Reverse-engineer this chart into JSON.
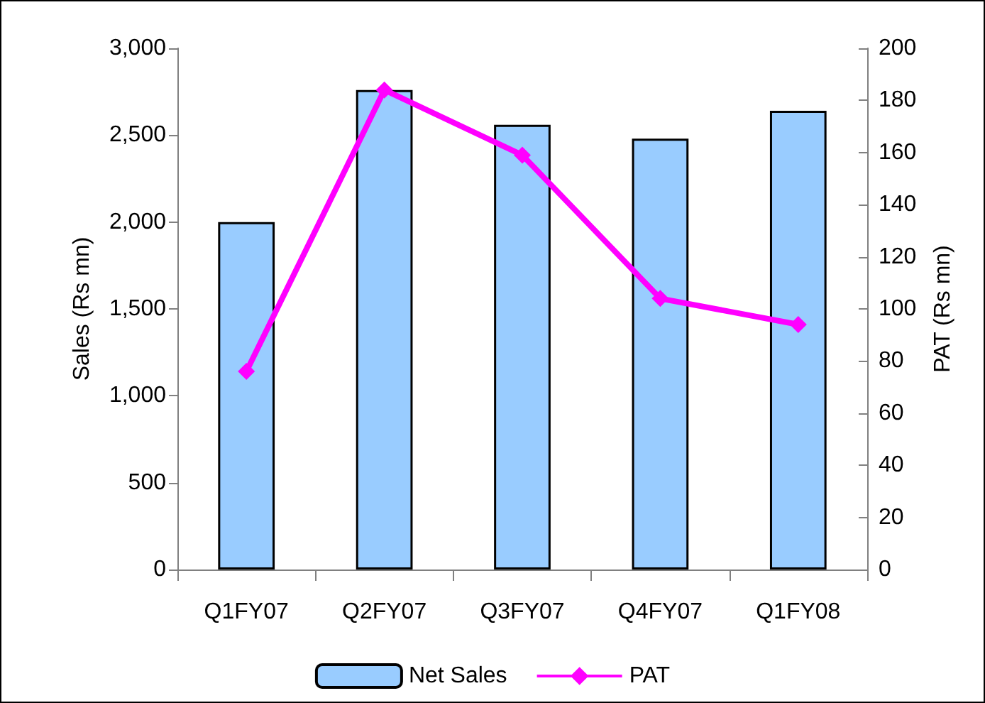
{
  "chart_data": {
    "type": "bar",
    "ylabel": "Sales (Rs mn)",
    "y2label": "PAT (Rs mn)",
    "categories": [
      "Q1FY07",
      "Q2FY07",
      "Q3FY07",
      "Q4FY07",
      "Q1FY08"
    ],
    "series": [
      {
        "name": "Net Sales",
        "color": "#99ccff",
        "values": [
          2000,
          2760,
          2560,
          2480,
          2640
        ]
      },
      {
        "name": "PAT",
        "type": "line",
        "axis": "y2",
        "color": "#ff00ff",
        "marker": "diamond",
        "values": [
          76,
          184,
          159,
          104,
          94
        ]
      }
    ],
    "ylim": [
      0,
      3000
    ],
    "yticks": [
      0,
      500,
      {
        "value": 1000,
        "label": "1,000"
      },
      {
        "value": 1500,
        "label": "1,500"
      },
      {
        "value": 2000,
        "label": "2,000"
      },
      {
        "value": 2500,
        "label": "2,500"
      },
      {
        "value": 3000,
        "label": "3,000"
      }
    ],
    "y2lim": [
      0,
      200
    ],
    "y2ticks": [
      0,
      20,
      40,
      60,
      80,
      100,
      120,
      140,
      160,
      180,
      200
    ],
    "grid": false,
    "legend": "bottom"
  }
}
